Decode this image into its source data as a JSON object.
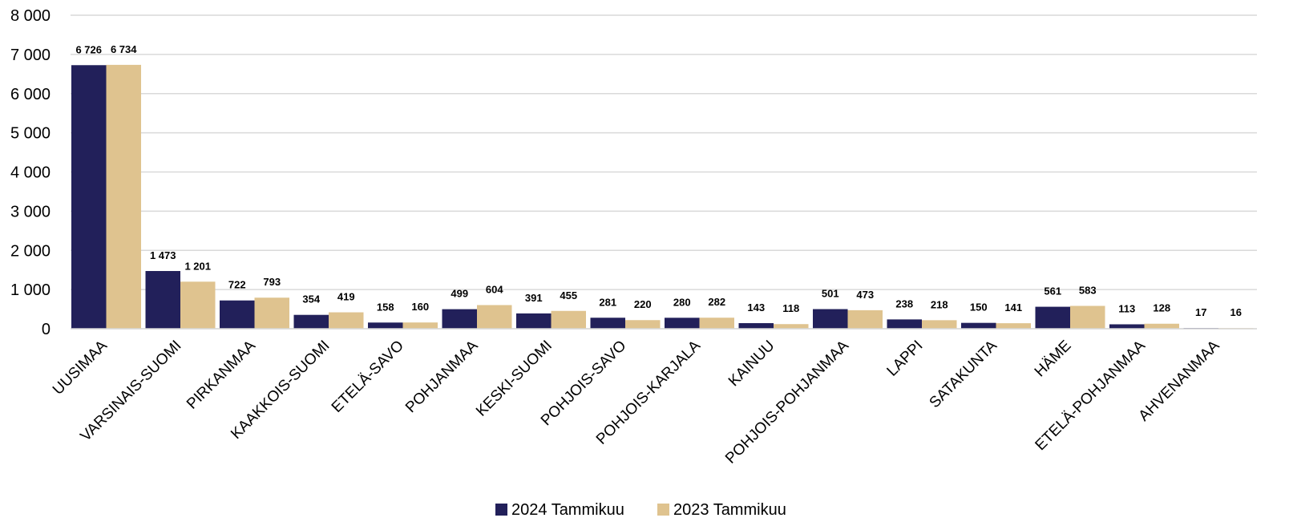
{
  "chart_data": {
    "type": "bar",
    "title": "",
    "xlabel": "",
    "ylabel": "",
    "ylim": [
      0,
      8000
    ],
    "yticks": [
      0,
      1000,
      2000,
      3000,
      4000,
      5000,
      6000,
      7000,
      8000
    ],
    "ytick_labels": [
      "0",
      "1 000",
      "2 000",
      "3 000",
      "4 000",
      "5 000",
      "6 000",
      "7 000",
      "8 000"
    ],
    "grid": true,
    "legend_position": "bottom",
    "categories": [
      "UUSIMAA",
      "VARSINAIS-SUOMI",
      "PIRKANMAA",
      "KAAKKOIS-SUOMI",
      "ETELÄ-SAVO",
      "POHJANMAA",
      "KESKI-SUOMI",
      "POHJOIS-SAVO",
      "POHJOIS-KARJALA",
      "KAINUU",
      "POHJOIS-POHJANMAA",
      "LAPPI",
      "SATAKUNTA",
      "HÄME",
      "ETELÄ-POHJANMAA",
      "AHVENANMAA"
    ],
    "series": [
      {
        "name": "2024 Tammikuu",
        "color": "#22205a",
        "values": [
          6726,
          1473,
          722,
          354,
          158,
          499,
          391,
          281,
          280,
          143,
          501,
          238,
          150,
          561,
          113,
          17
        ],
        "labels": [
          "6 726",
          "1 473",
          "722",
          "354",
          "158",
          "499",
          "391",
          "281",
          "280",
          "143",
          "501",
          "238",
          "150",
          "561",
          "113",
          "17"
        ]
      },
      {
        "name": "2023 Tammikuu",
        "color": "#dfc38f",
        "values": [
          6734,
          1201,
          793,
          419,
          160,
          604,
          455,
          220,
          282,
          118,
          473,
          218,
          141,
          583,
          128,
          16
        ],
        "labels": [
          "6 734",
          "1 201",
          "793",
          "419",
          "160",
          "604",
          "455",
          "220",
          "282",
          "118",
          "473",
          "218",
          "141",
          "583",
          "128",
          "16"
        ]
      }
    ]
  }
}
